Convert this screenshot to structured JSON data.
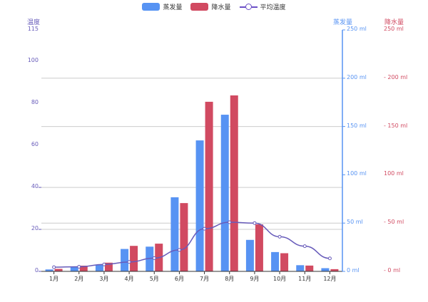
{
  "legend": [
    {
      "label": "蒸发量",
      "color": "#5793f3"
    },
    {
      "label": "降水量",
      "color": "#d14a61"
    },
    {
      "label": "平均温度",
      "color": "#675bba"
    }
  ],
  "axes": {
    "left": {
      "name": "温度",
      "color": "#675bba",
      "ticks": [
        "0",
        "20",
        "40",
        "60",
        "80",
        "100",
        "115"
      ]
    },
    "right1": {
      "name": "蒸发量",
      "color": "#5793f3",
      "ticks": [
        "0 ml",
        "50 ml",
        "100 ml",
        "150 ml",
        "200 ml",
        "250 ml"
      ]
    },
    "right2": {
      "name": "降水量",
      "color": "#d14a61",
      "ticks": [
        "- 0 ml",
        "- 50 ml",
        "100 ml",
        "- 150 ml",
        "- 200 ml",
        "250 ml"
      ]
    }
  },
  "chart_data": {
    "type": "bar",
    "title": "",
    "categories": [
      "1月",
      "2月",
      "3月",
      "4月",
      "5月",
      "6月",
      "7月",
      "8月",
      "9月",
      "10月",
      "11月",
      "12月"
    ],
    "series": [
      {
        "name": "蒸发量",
        "type": "bar",
        "yAxis": "right1",
        "color": "#5793f3",
        "values": [
          2.0,
          4.9,
          7.0,
          23.2,
          25.6,
          76.7,
          135.6,
          162.2,
          32.6,
          20.0,
          6.4,
          3.3
        ]
      },
      {
        "name": "降水量",
        "type": "bar",
        "yAxis": "right2",
        "color": "#d14a61",
        "values": [
          2.6,
          5.9,
          9.0,
          26.4,
          28.7,
          70.7,
          175.6,
          182.2,
          48.7,
          18.8,
          6.0,
          2.3
        ]
      },
      {
        "name": "平均温度",
        "type": "line",
        "yAxis": "left",
        "color": "#675bba",
        "values": [
          2.0,
          2.2,
          3.3,
          4.5,
          6.3,
          10.2,
          20.3,
          23.4,
          23.0,
          16.5,
          12.0,
          6.2
        ]
      }
    ],
    "ylabel_left": "温度",
    "ylabel_right": [
      "蒸发量",
      "降水量"
    ],
    "ylim_left": [
      0,
      115
    ],
    "ylim_right": [
      0,
      250
    ],
    "grid": true,
    "legend_position": "top"
  }
}
